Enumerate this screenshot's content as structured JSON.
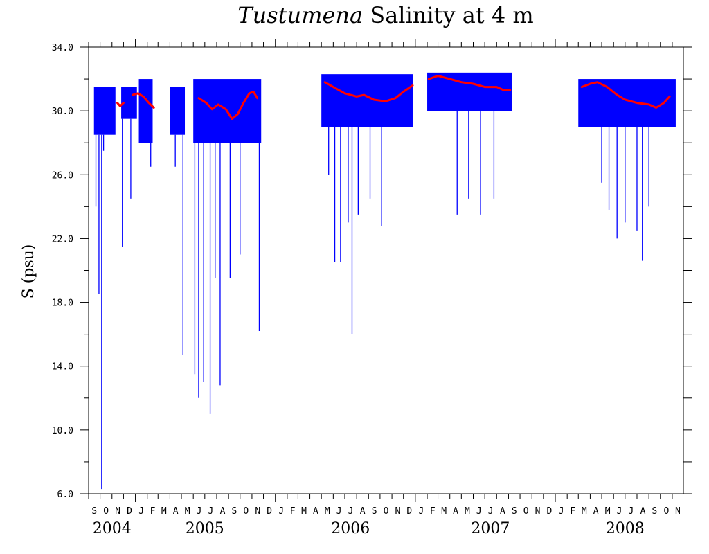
{
  "chart_data": {
    "type": "line",
    "title_italic": "Tustumena",
    "title_rest": " Salinity at 4 m",
    "xlabel": "",
    "ylabel": "S (psu)",
    "ylim": [
      6.0,
      34.0
    ],
    "xlim": [
      "2004-09-01",
      "2008-11-30"
    ],
    "y_ticks": [
      "6.0",
      "10.0",
      "14.0",
      "18.0",
      "22.0",
      "26.0",
      "30.0",
      "34.0"
    ],
    "grid": false,
    "year_labels": [
      {
        "label": "2004",
        "center": "2004-11-01"
      },
      {
        "label": "2005",
        "center": "2005-07-01"
      },
      {
        "label": "2006",
        "center": "2006-07-16"
      },
      {
        "label": "2007",
        "center": "2007-07-16"
      },
      {
        "label": "2008",
        "center": "2008-07-01"
      }
    ],
    "colors": {
      "raw": "#0000ff",
      "smoothed": "#ff0000",
      "axes": "#000000"
    },
    "raw_segments": [
      {
        "start": "2004-09-15",
        "end": "2004-11-10",
        "upper": 31.5,
        "lower": 28.5
      },
      {
        "start": "2004-11-25",
        "end": "2005-01-05",
        "upper": 31.5,
        "lower": 29.5
      },
      {
        "start": "2005-01-10",
        "end": "2005-02-15",
        "upper": 32.0,
        "lower": 28.0
      },
      {
        "start": "2005-04-01",
        "end": "2005-05-10",
        "upper": 31.5,
        "lower": 28.5
      },
      {
        "start": "2005-06-01",
        "end": "2005-11-25",
        "upper": 32.0,
        "lower": 28.0
      },
      {
        "start": "2006-05-01",
        "end": "2006-12-25",
        "upper": 32.3,
        "lower": 29.0
      },
      {
        "start": "2007-02-01",
        "end": "2007-09-10",
        "upper": 32.4,
        "lower": 30.0
      },
      {
        "start": "2008-03-01",
        "end": "2008-11-10",
        "upper": 32.0,
        "lower": 29.0
      }
    ],
    "raw_dips": [
      {
        "date": "2004-09-20",
        "value": 24.0
      },
      {
        "date": "2004-09-28",
        "value": 18.5
      },
      {
        "date": "2004-10-05",
        "value": 6.3
      },
      {
        "date": "2004-10-10",
        "value": 27.5
      },
      {
        "date": "2004-11-28",
        "value": 21.5
      },
      {
        "date": "2004-12-20",
        "value": 24.5
      },
      {
        "date": "2005-01-25",
        "value": 28.0
      },
      {
        "date": "2005-02-10",
        "value": 26.5
      },
      {
        "date": "2005-04-15",
        "value": 26.5
      },
      {
        "date": "2005-05-05",
        "value": 14.7
      },
      {
        "date": "2005-06-05",
        "value": 13.5
      },
      {
        "date": "2005-06-15",
        "value": 12.0
      },
      {
        "date": "2005-06-28",
        "value": 13.0
      },
      {
        "date": "2005-07-15",
        "value": 11.0
      },
      {
        "date": "2005-07-28",
        "value": 19.5
      },
      {
        "date": "2005-08-10",
        "value": 12.8
      },
      {
        "date": "2005-09-05",
        "value": 19.5
      },
      {
        "date": "2005-10-01",
        "value": 21.0
      },
      {
        "date": "2005-11-20",
        "value": 16.2
      },
      {
        "date": "2006-05-20",
        "value": 26.0
      },
      {
        "date": "2006-06-05",
        "value": 20.5
      },
      {
        "date": "2006-06-20",
        "value": 20.5
      },
      {
        "date": "2006-07-10",
        "value": 23.0
      },
      {
        "date": "2006-07-20",
        "value": 16.0
      },
      {
        "date": "2006-08-05",
        "value": 23.5
      },
      {
        "date": "2006-09-05",
        "value": 24.5
      },
      {
        "date": "2006-10-05",
        "value": 22.8
      },
      {
        "date": "2007-04-20",
        "value": 23.5
      },
      {
        "date": "2007-05-20",
        "value": 24.5
      },
      {
        "date": "2007-06-20",
        "value": 23.5
      },
      {
        "date": "2007-07-25",
        "value": 24.5
      },
      {
        "date": "2008-05-01",
        "value": 25.5
      },
      {
        "date": "2008-05-20",
        "value": 23.8
      },
      {
        "date": "2008-06-10",
        "value": 22.0
      },
      {
        "date": "2008-07-01",
        "value": 23.0
      },
      {
        "date": "2008-08-01",
        "value": 22.5
      },
      {
        "date": "2008-08-15",
        "value": 20.6
      },
      {
        "date": "2008-09-01",
        "value": 24.0
      }
    ],
    "smoothed": [
      [
        {
          "x": "2004-11-15",
          "y": 30.5
        },
        {
          "x": "2004-11-22",
          "y": 30.3
        },
        {
          "x": "2004-12-01",
          "y": 30.5
        }
      ],
      [
        {
          "x": "2004-12-25",
          "y": 31.0
        },
        {
          "x": "2005-01-08",
          "y": 31.1
        },
        {
          "x": "2005-01-22",
          "y": 30.9
        },
        {
          "x": "2005-02-05",
          "y": 30.5
        },
        {
          "x": "2005-02-18",
          "y": 30.2
        }
      ],
      [
        {
          "x": "2005-06-15",
          "y": 30.8
        },
        {
          "x": "2005-07-05",
          "y": 30.5
        },
        {
          "x": "2005-07-20",
          "y": 30.1
        },
        {
          "x": "2005-08-05",
          "y": 30.4
        },
        {
          "x": "2005-08-25",
          "y": 30.1
        },
        {
          "x": "2005-09-10",
          "y": 29.5
        },
        {
          "x": "2005-09-25",
          "y": 29.8
        },
        {
          "x": "2005-10-10",
          "y": 30.5
        },
        {
          "x": "2005-10-25",
          "y": 31.1
        },
        {
          "x": "2005-11-05",
          "y": 31.2
        },
        {
          "x": "2005-11-15",
          "y": 30.8
        }
      ],
      [
        {
          "x": "2006-05-10",
          "y": 31.8
        },
        {
          "x": "2006-06-01",
          "y": 31.5
        },
        {
          "x": "2006-07-01",
          "y": 31.1
        },
        {
          "x": "2006-08-01",
          "y": 30.9
        },
        {
          "x": "2006-08-20",
          "y": 31.0
        },
        {
          "x": "2006-09-15",
          "y": 30.7
        },
        {
          "x": "2006-10-15",
          "y": 30.6
        },
        {
          "x": "2006-11-10",
          "y": 30.8
        },
        {
          "x": "2006-12-01",
          "y": 31.2
        },
        {
          "x": "2006-12-25",
          "y": 31.6
        }
      ],
      [
        {
          "x": "2007-02-05",
          "y": 32.0
        },
        {
          "x": "2007-03-01",
          "y": 32.2
        },
        {
          "x": "2007-04-01",
          "y": 32.0
        },
        {
          "x": "2007-05-01",
          "y": 31.8
        },
        {
          "x": "2007-06-01",
          "y": 31.7
        },
        {
          "x": "2007-07-01",
          "y": 31.5
        },
        {
          "x": "2007-08-01",
          "y": 31.5
        },
        {
          "x": "2007-08-20",
          "y": 31.3
        },
        {
          "x": "2007-09-05",
          "y": 31.3
        }
      ],
      [
        {
          "x": "2008-03-10",
          "y": 31.5
        },
        {
          "x": "2008-04-01",
          "y": 31.7
        },
        {
          "x": "2008-04-20",
          "y": 31.8
        },
        {
          "x": "2008-05-15",
          "y": 31.5
        },
        {
          "x": "2008-06-10",
          "y": 31.0
        },
        {
          "x": "2008-07-01",
          "y": 30.7
        },
        {
          "x": "2008-08-01",
          "y": 30.5
        },
        {
          "x": "2008-09-01",
          "y": 30.4
        },
        {
          "x": "2008-09-20",
          "y": 30.2
        },
        {
          "x": "2008-10-10",
          "y": 30.5
        },
        {
          "x": "2008-10-25",
          "y": 30.9
        }
      ]
    ]
  }
}
